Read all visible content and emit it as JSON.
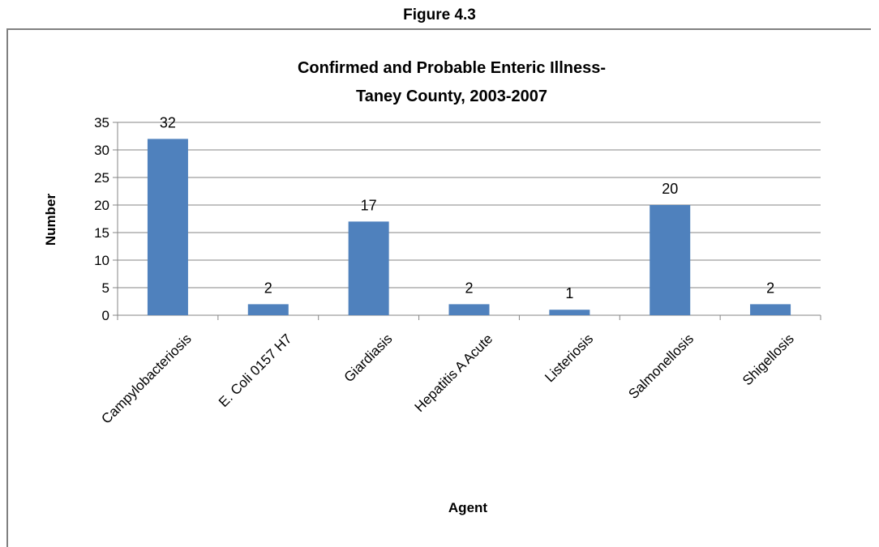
{
  "figure_caption": "Figure 4.3",
  "chart_data": {
    "type": "bar",
    "title_lines": [
      "Confirmed and Probable Enteric Illness-",
      "Taney County, 2003-2007"
    ],
    "xlabel": "Agent",
    "ylabel": "Number",
    "categories": [
      "Campylobacteriosis",
      "E. Coli 0157 H7",
      "Giardiasis",
      "Hepatitis A Acute",
      "Listeriosis",
      "Salmonellosis",
      "Shigellosis"
    ],
    "values": [
      32,
      2,
      17,
      2,
      1,
      20,
      2
    ],
    "ylim": [
      0,
      35
    ],
    "yticks": [
      0,
      5,
      10,
      15,
      20,
      25,
      30,
      35
    ],
    "grid": true,
    "legend": "none",
    "bar_color": "#4F81BD",
    "data_labels": true
  }
}
